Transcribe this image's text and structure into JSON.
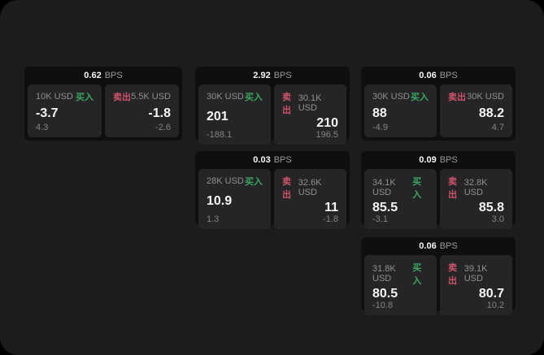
{
  "labels": {
    "bps_unit": "BPS",
    "buy": "买入",
    "sell": "卖出"
  },
  "colors": {
    "buy_accent": "#3aa760",
    "sell_accent": "#cf5268",
    "panel_background": "#1c1c1e",
    "card_background": "#0f0f10",
    "tile_background": "#252528"
  },
  "cards": [
    {
      "bps": "0.62",
      "buy": {
        "size": "10K USD",
        "price": "-3.7",
        "delta": "4.3"
      },
      "sell": {
        "size": "5.5K USD",
        "price": "-1.8",
        "delta": "-2.6"
      }
    },
    {
      "bps": "2.92",
      "buy": {
        "size": "30K USD",
        "price": "201",
        "delta": "-188.1"
      },
      "sell": {
        "size": "30.1K USD",
        "price": "210",
        "delta": "196.5"
      }
    },
    {
      "bps": "0.06",
      "buy": {
        "size": "30K USD",
        "price": "88",
        "delta": "-4.9"
      },
      "sell": {
        "size": "30K USD",
        "price": "88.2",
        "delta": "4.7"
      }
    },
    {
      "bps": "0.03",
      "buy": {
        "size": "28K USD",
        "price": "10.9",
        "delta": "1.3"
      },
      "sell": {
        "size": "32.6K USD",
        "price": "11",
        "delta": "-1.8"
      }
    },
    {
      "bps": "0.09",
      "buy": {
        "size": "34.1K USD",
        "price": "85.5",
        "delta": "-3.1"
      },
      "sell": {
        "size": "32.8K USD",
        "price": "85.8",
        "delta": "3.0"
      }
    },
    {
      "bps": "0.06",
      "buy": {
        "size": "31.8K USD",
        "price": "80.5",
        "delta": "-10.8"
      },
      "sell": {
        "size": "39.1K USD",
        "price": "80.7",
        "delta": "10.2"
      }
    }
  ]
}
